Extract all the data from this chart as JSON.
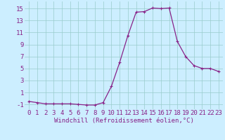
{
  "x": [
    0,
    1,
    2,
    3,
    4,
    5,
    6,
    7,
    8,
    9,
    10,
    11,
    12,
    13,
    14,
    15,
    16,
    17,
    18,
    19,
    20,
    21,
    22,
    23
  ],
  "y": [
    -0.5,
    -0.7,
    -0.9,
    -0.9,
    -0.9,
    -0.9,
    -1.0,
    -1.1,
    -1.1,
    -0.7,
    2.0,
    6.0,
    10.5,
    14.4,
    14.5,
    15.1,
    15.0,
    15.1,
    9.5,
    7.0,
    5.5,
    5.0,
    5.0,
    4.5
  ],
  "line_color": "#882288",
  "marker": "+",
  "marker_color": "#882288",
  "bg_color": "#cceeff",
  "grid_color": "#99cccc",
  "xlabel": "Windchill (Refroidissement éolien,°C)",
  "xlabel_color": "#882288",
  "ylim": [
    -1.8,
    16.2
  ],
  "xlim": [
    -0.5,
    23.5
  ],
  "xticks": [
    0,
    1,
    2,
    3,
    4,
    5,
    6,
    7,
    8,
    9,
    10,
    11,
    12,
    13,
    14,
    15,
    16,
    17,
    18,
    19,
    20,
    21,
    22,
    23
  ],
  "yticks": [
    -1,
    1,
    3,
    5,
    7,
    9,
    11,
    13,
    15
  ],
  "tick_color": "#882288",
  "font_size": 6.5,
  "marker_size": 3.5,
  "line_width": 0.9
}
